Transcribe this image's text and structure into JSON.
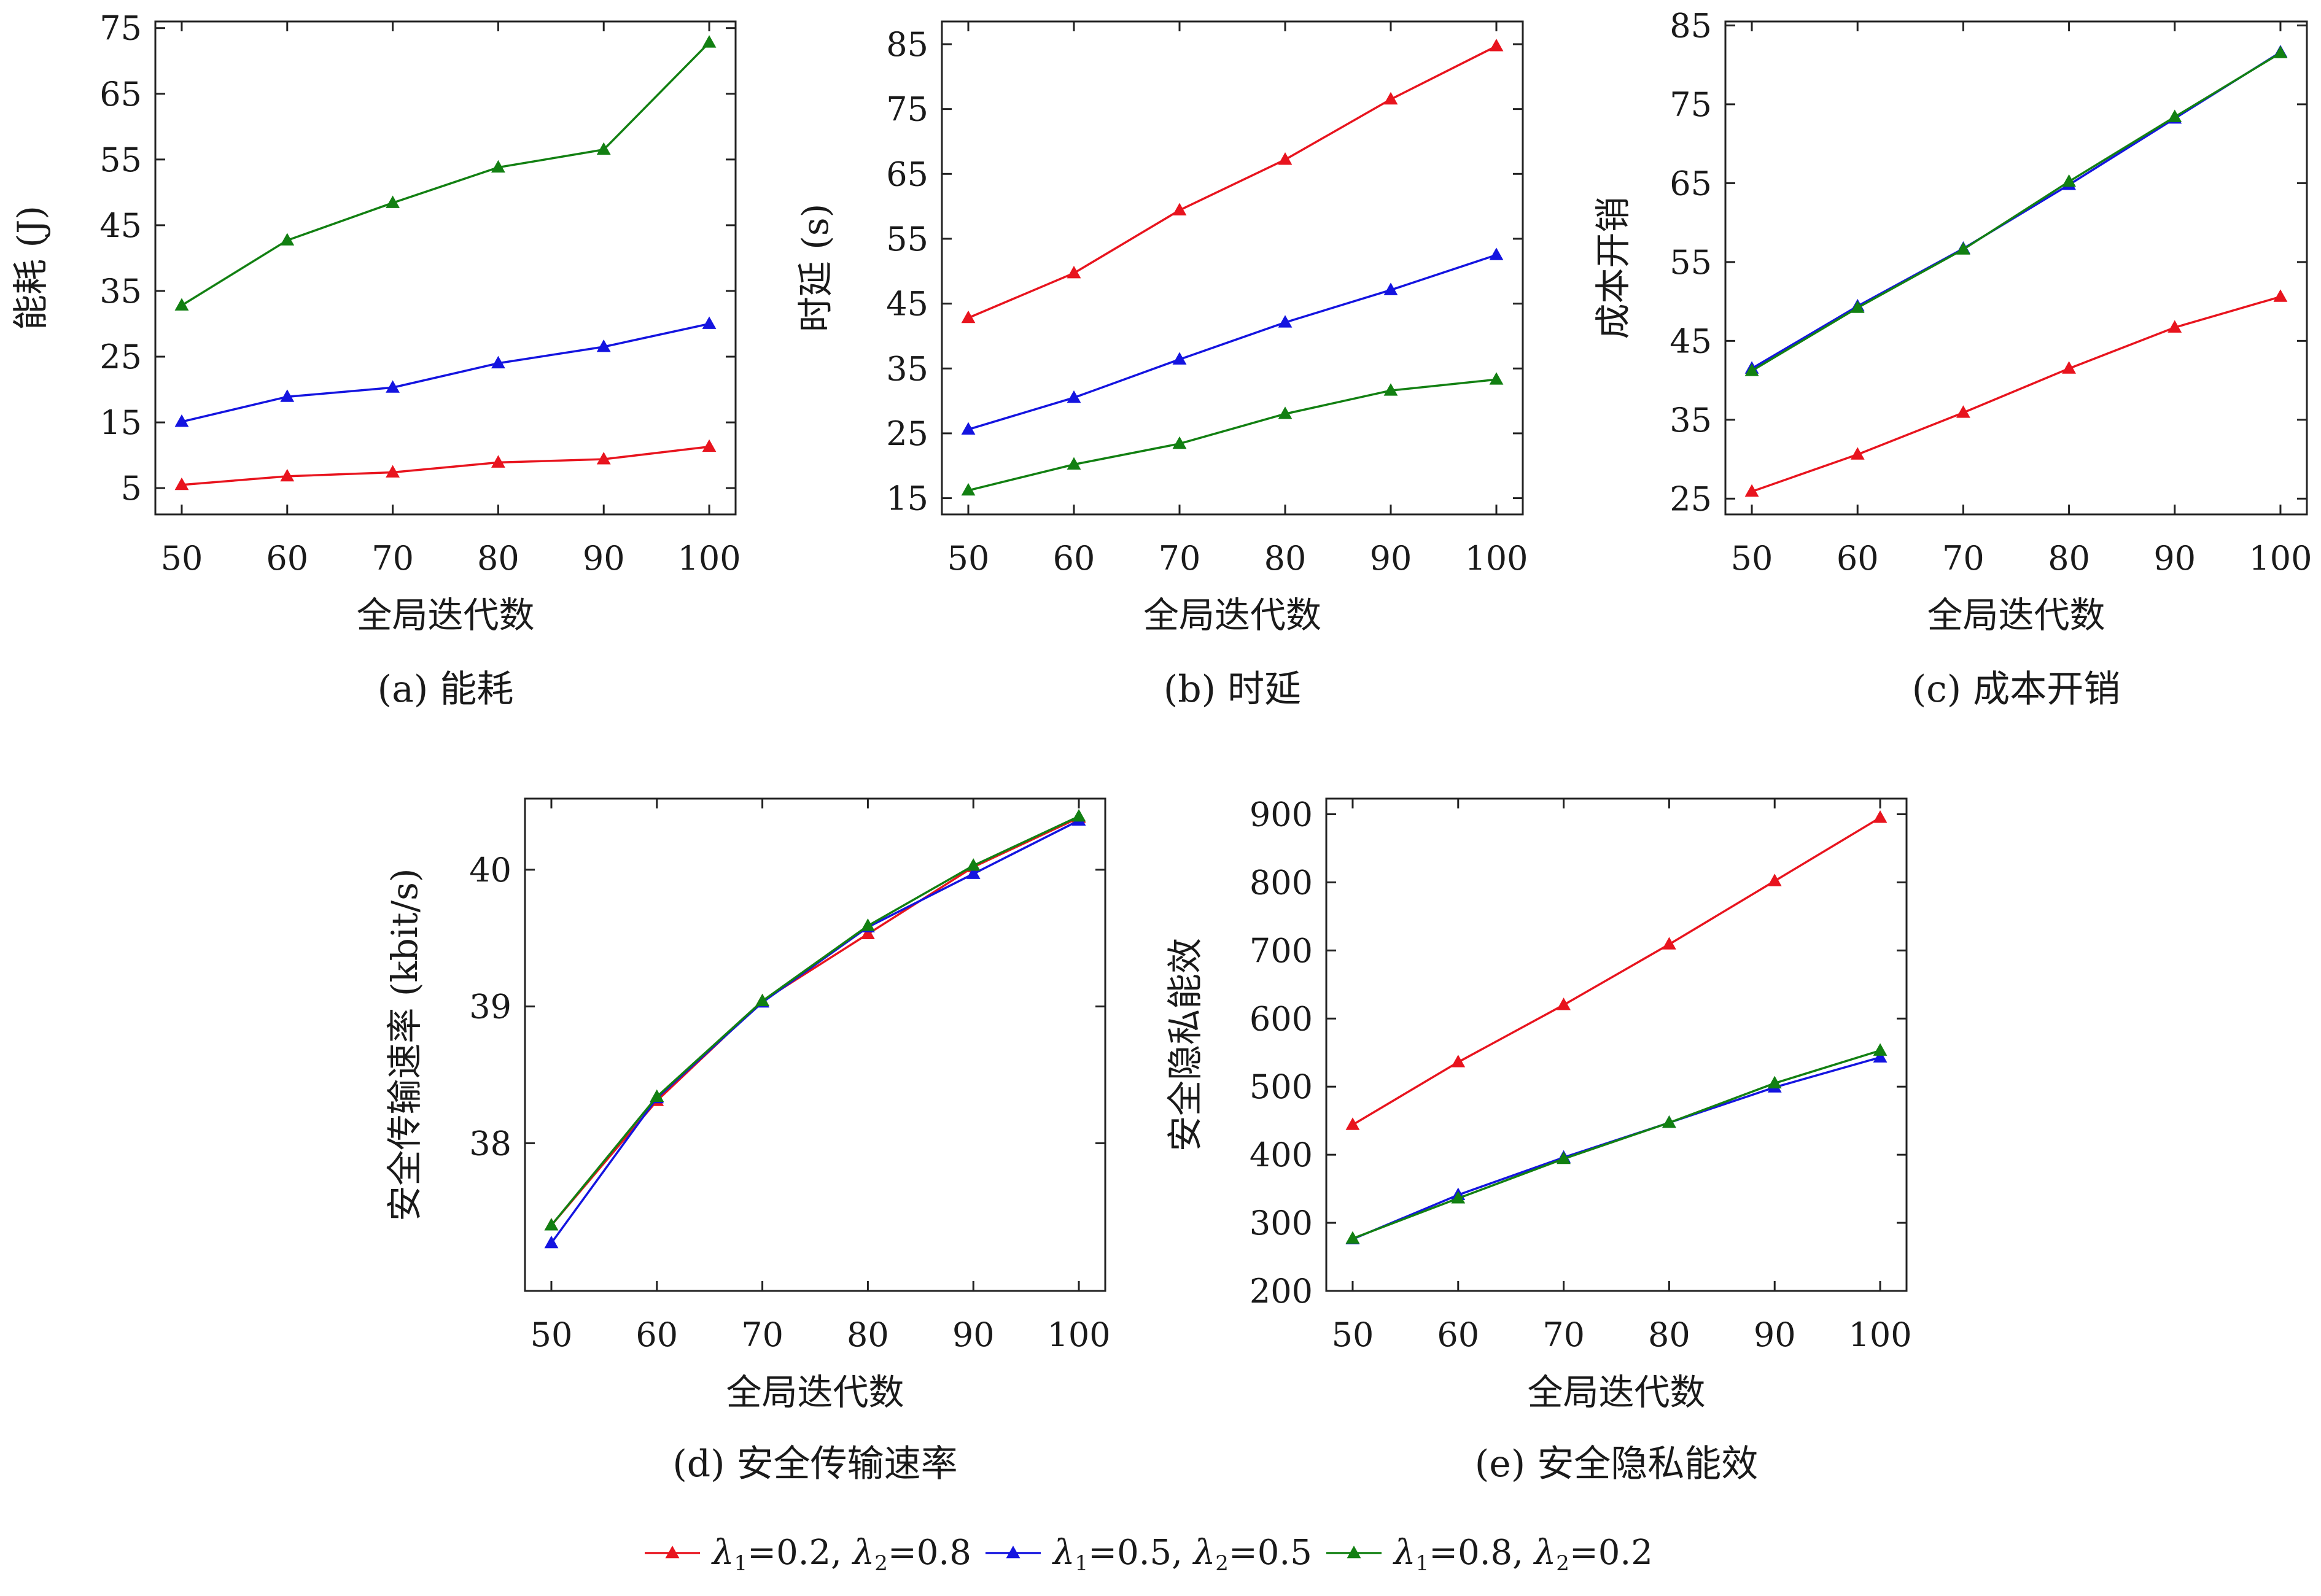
{
  "colors": {
    "series_red": "#e8141e",
    "series_blue": "#1414e0",
    "series_green": "#128012"
  },
  "legend": {
    "items": [
      {
        "lambda1_symbol": "λ",
        "lambda1_sub": "1",
        "lambda1_value": "=0.2, ",
        "lambda2_symbol": "λ",
        "lambda2_sub": "2",
        "lambda2_value": "=0.8",
        "color": "#e8141e"
      },
      {
        "lambda1_symbol": "λ",
        "lambda1_sub": "1",
        "lambda1_value": "=0.5, ",
        "lambda2_symbol": "λ",
        "lambda2_sub": "2",
        "lambda2_value": "=0.5",
        "color": "#1414e0"
      },
      {
        "lambda1_symbol": "λ",
        "lambda1_sub": "1",
        "lambda1_value": "=0.8, ",
        "lambda2_symbol": "λ",
        "lambda2_sub": "2",
        "lambda2_value": "=0.2",
        "color": "#128012"
      }
    ]
  },
  "chart_data": [
    {
      "type": "line",
      "caption": "(a) 能耗",
      "xlabel": "全局迭代数",
      "ylabel": "能耗 (J)",
      "x": [
        50,
        60,
        70,
        80,
        90,
        100
      ],
      "xticks": [
        50,
        60,
        70,
        80,
        90,
        100
      ],
      "xlim": [
        47.5,
        102.5
      ],
      "yticks": [
        5,
        15,
        25,
        35,
        45,
        55,
        65,
        75
      ],
      "ylim": [
        1,
        76
      ],
      "grid": false,
      "series": [
        {
          "color": "#e8141e",
          "values": [
            5.5,
            6.8,
            7.4,
            8.9,
            9.4,
            11.3
          ]
        },
        {
          "color": "#1414e0",
          "values": [
            15.1,
            18.9,
            20.3,
            24.0,
            26.5,
            30.0
          ]
        },
        {
          "color": "#128012",
          "values": [
            32.8,
            42.7,
            48.4,
            53.8,
            56.5,
            72.8
          ]
        }
      ]
    },
    {
      "type": "line",
      "caption": "(b) 时延",
      "xlabel": "全局迭代数",
      "ylabel": "时延 (s)",
      "x": [
        50,
        60,
        70,
        80,
        90,
        100
      ],
      "xticks": [
        50,
        60,
        70,
        80,
        90,
        100
      ],
      "xlim": [
        47.5,
        102.5
      ],
      "yticks": [
        15,
        25,
        35,
        45,
        55,
        65,
        75,
        85
      ],
      "ylim": [
        12.5,
        88.5
      ],
      "grid": false,
      "series": [
        {
          "color": "#e8141e",
          "values": [
            42.8,
            49.7,
            59.4,
            67.2,
            76.5,
            84.7
          ]
        },
        {
          "color": "#1414e0",
          "values": [
            25.6,
            30.5,
            36.4,
            42.1,
            47.1,
            52.5
          ]
        },
        {
          "color": "#128012",
          "values": [
            16.2,
            20.2,
            23.4,
            28.0,
            31.6,
            33.3
          ]
        }
      ]
    },
    {
      "type": "line",
      "caption": "(c) 成本开销",
      "xlabel": "全局迭代数",
      "ylabel": "成本开销",
      "x": [
        50,
        60,
        70,
        80,
        90,
        100
      ],
      "xticks": [
        50,
        60,
        70,
        80,
        90,
        100
      ],
      "xlim": [
        47.5,
        102.5
      ],
      "yticks": [
        25,
        35,
        45,
        55,
        65,
        75,
        85
      ],
      "ylim": [
        23,
        85.5
      ],
      "grid": false,
      "series": [
        {
          "color": "#e8141e",
          "values": [
            25.9,
            30.6,
            35.9,
            41.5,
            46.7,
            50.6
          ]
        },
        {
          "color": "#1414e0",
          "values": [
            41.5,
            49.4,
            56.7,
            64.8,
            73.2,
            81.6
          ]
        },
        {
          "color": "#128012",
          "values": [
            41.2,
            49.2,
            56.6,
            65.2,
            73.4,
            81.5
          ]
        }
      ]
    },
    {
      "type": "line",
      "caption": "(d) 安全传输速率",
      "xlabel": "全局迭代数",
      "ylabel": "安全传输速率 (kbit/s)",
      "x": [
        50,
        60,
        70,
        80,
        90,
        100
      ],
      "xticks": [
        50,
        60,
        70,
        80,
        90,
        100
      ],
      "xlim": [
        47.5,
        102.5
      ],
      "yticks": [
        38,
        39,
        40
      ],
      "ylim": [
        36.92,
        40.52
      ],
      "grid": false,
      "series": [
        {
          "color": "#e8141e",
          "values": [
            37.4,
            38.31,
            39.04,
            39.53,
            40.02,
            40.38
          ]
        },
        {
          "color": "#1414e0",
          "values": [
            37.27,
            38.33,
            39.03,
            39.58,
            39.97,
            40.36
          ]
        },
        {
          "color": "#128012",
          "values": [
            37.4,
            38.34,
            39.04,
            39.59,
            40.03,
            40.39
          ]
        }
      ]
    },
    {
      "type": "line",
      "caption": "(e) 安全隐私能效",
      "xlabel": "全局迭代数",
      "ylabel": "安全隐私能效",
      "x": [
        50,
        60,
        70,
        80,
        90,
        100
      ],
      "xticks": [
        50,
        60,
        70,
        80,
        90,
        100
      ],
      "xlim": [
        47.5,
        102.5
      ],
      "yticks": [
        200,
        300,
        400,
        500,
        600,
        700,
        800,
        900
      ],
      "ylim": [
        200,
        923
      ],
      "grid": false,
      "series": [
        {
          "color": "#e8141e",
          "values": [
            444,
            536,
            620,
            709,
            802,
            895
          ]
        },
        {
          "color": "#1414e0",
          "values": [
            276,
            341,
            396,
            447,
            499,
            543
          ]
        },
        {
          "color": "#128012",
          "values": [
            277,
            336,
            394,
            447,
            505,
            553
          ]
        }
      ]
    }
  ]
}
